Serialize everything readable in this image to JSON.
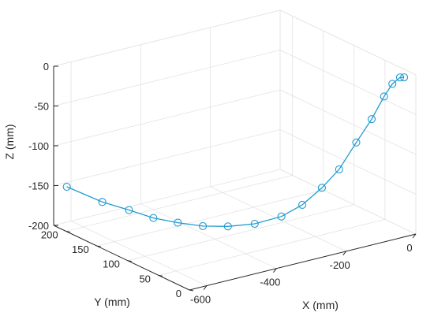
{
  "chart_data": {
    "type": "line",
    "projection": "3d",
    "title": "",
    "xlabel": "X (mm)",
    "ylabel": "Y (mm)",
    "zlabel": "Z (mm)",
    "xlim": [
      -650,
      0
    ],
    "ylim": [
      0,
      220
    ],
    "zlim": [
      -200,
      0
    ],
    "xticks": [
      {
        "value": 0,
        "label": "0"
      },
      {
        "value": -200,
        "label": "-200"
      },
      {
        "value": -400,
        "label": "-400"
      },
      {
        "value": -600,
        "label": "-600"
      }
    ],
    "yticks": [
      {
        "value": 0,
        "label": "0"
      },
      {
        "value": 50,
        "label": "50"
      },
      {
        "value": 100,
        "label": "100"
      },
      {
        "value": 150,
        "label": "150"
      },
      {
        "value": 200,
        "label": "200"
      }
    ],
    "zticks": [
      {
        "value": 0,
        "label": "0"
      },
      {
        "value": -50,
        "label": "-50"
      },
      {
        "value": -100,
        "label": "-100"
      },
      {
        "value": -150,
        "label": "-150"
      },
      {
        "value": -200,
        "label": "-200"
      }
    ],
    "grid": true,
    "box": "open",
    "line_color": "#1f9bd1",
    "marker": "circle",
    "series": [
      {
        "points": [
          [
            -630,
            210,
            -150
          ],
          [
            -560,
            192,
            -170
          ],
          [
            -510,
            177,
            -180
          ],
          [
            -470,
            160,
            -188
          ],
          [
            -430,
            143,
            -192
          ],
          [
            -390,
            125,
            -194
          ],
          [
            -350,
            107,
            -192
          ],
          [
            -305,
            89,
            -187
          ],
          [
            -260,
            71,
            -176
          ],
          [
            -225,
            57,
            -160
          ],
          [
            -190,
            45,
            -138
          ],
          [
            -160,
            34,
            -114
          ],
          [
            -125,
            26,
            -81
          ],
          [
            -95,
            18,
            -52
          ],
          [
            -70,
            12,
            -24
          ],
          [
            -55,
            7,
            -8
          ],
          [
            -40,
            3,
            0
          ],
          [
            -32,
            1,
            0
          ]
        ]
      }
    ]
  }
}
